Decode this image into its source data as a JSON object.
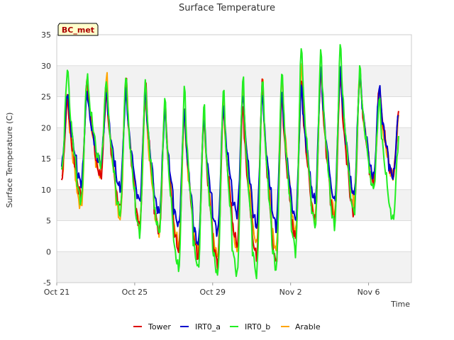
{
  "chart_data": {
    "type": "line",
    "title": "Surface Temperature",
    "xlabel": "Time",
    "ylabel": "Surface Temperature (C)",
    "ylim": [
      -5,
      35
    ],
    "xlim_days": [
      0,
      18.2
    ],
    "yticks": [
      -5,
      0,
      5,
      10,
      15,
      20,
      25,
      30,
      35
    ],
    "xticks": [
      {
        "day": 0,
        "label": "Oct 21"
      },
      {
        "day": 4,
        "label": "Oct 25"
      },
      {
        "day": 8,
        "label": "Oct 29"
      },
      {
        "day": 12,
        "label": "Nov 2"
      },
      {
        "day": 16,
        "label": "Nov 6"
      }
    ],
    "badge": "BC_met",
    "legend": [
      "Tower",
      "IRT0_a",
      "IRT0_b",
      "Arable"
    ],
    "series": [
      {
        "name": "Tower",
        "color": "#dd0000",
        "daily_max": [
          25,
          28,
          26,
          28,
          28,
          24,
          24,
          22,
          24,
          24,
          28,
          26,
          28,
          30,
          29,
          29,
          27,
          23
        ],
        "daily_min": [
          12,
          9,
          12,
          7,
          4,
          3,
          0,
          -1,
          -2,
          1,
          -1,
          -2,
          2,
          5,
          5,
          6,
          11,
          12
        ]
      },
      {
        "name": "IRT0_a",
        "color": "#0000cc",
        "daily_max": [
          26,
          26,
          26,
          26,
          26,
          23,
          23,
          22,
          24,
          26,
          26,
          26,
          27,
          30,
          30,
          29,
          27,
          23
        ],
        "daily_min": [
          14,
          11,
          14,
          10,
          8,
          6,
          4,
          1,
          3,
          6,
          4,
          4,
          5,
          8,
          8,
          9,
          12,
          12
        ]
      },
      {
        "name": "IRT0_b",
        "color": "#22ee22",
        "daily_max": [
          30,
          29,
          28,
          29,
          28,
          25,
          27,
          24,
          27,
          29,
          29,
          30,
          34,
          33,
          34,
          30,
          25,
          19
        ],
        "daily_min": [
          13,
          8,
          14,
          6,
          3,
          3,
          -3,
          -3,
          -4,
          -4,
          -4,
          -3,
          0,
          4,
          4,
          6,
          10,
          5
        ]
      },
      {
        "name": "Arable",
        "color": "#ffa500",
        "daily_max": [
          25,
          28,
          29,
          29,
          25,
          24,
          22,
          22,
          25,
          27,
          28,
          29,
          31,
          30,
          30,
          29,
          25,
          22
        ],
        "daily_min": [
          12,
          7,
          12,
          5,
          4,
          3,
          1,
          0,
          -1,
          0,
          1,
          0,
          3,
          5,
          6,
          8,
          11,
          12
        ]
      }
    ]
  }
}
